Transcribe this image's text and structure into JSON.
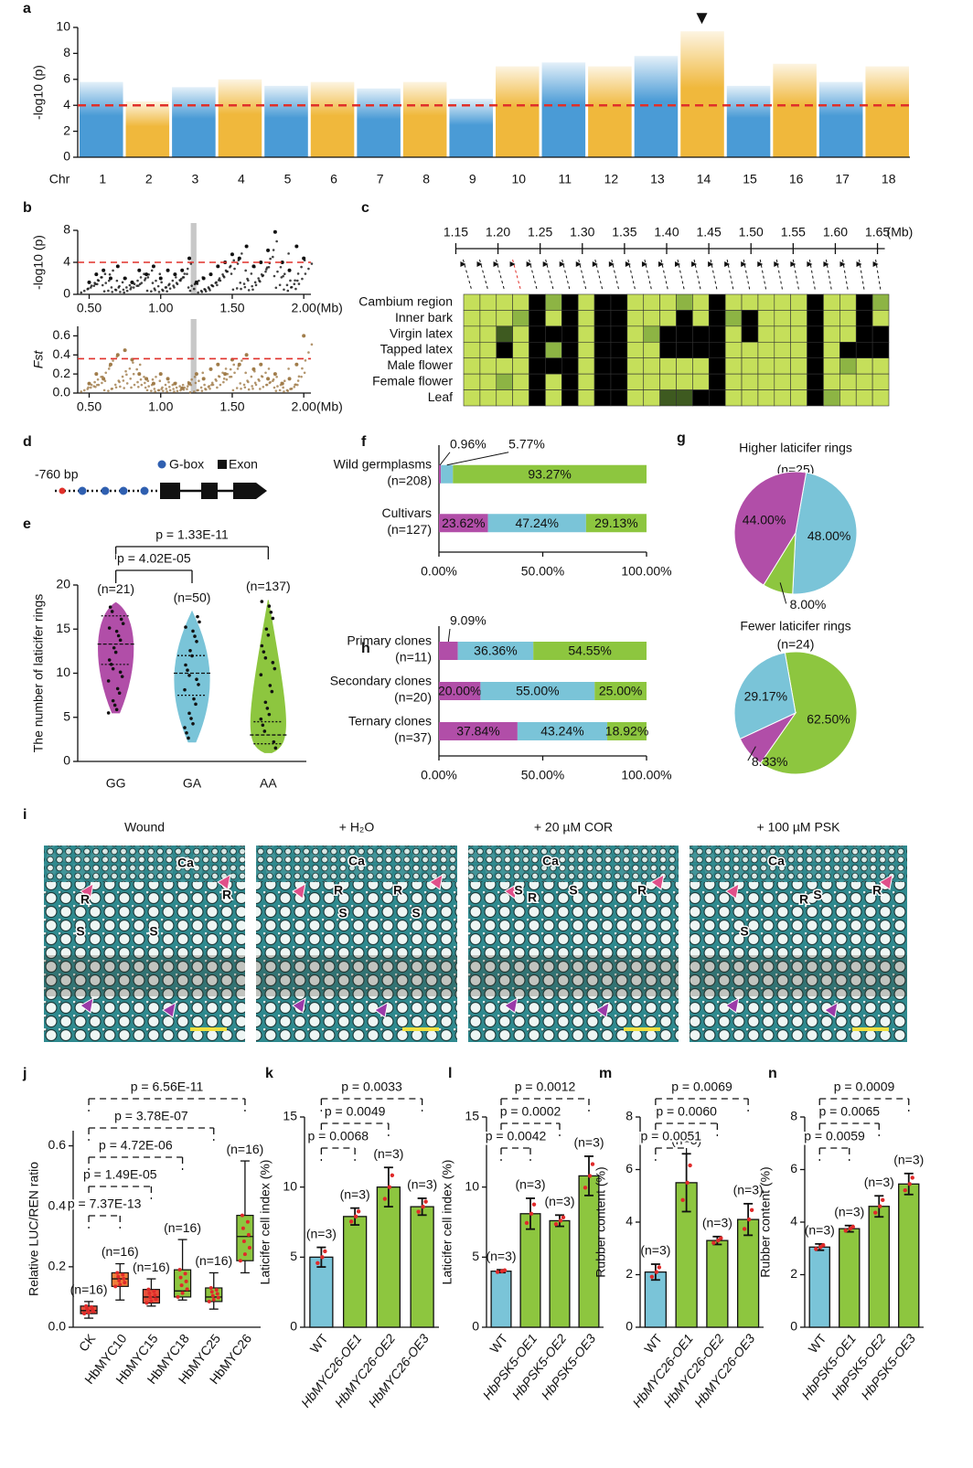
{
  "chart_data": [
    {
      "label": "a",
      "type": "manhattan",
      "ylabel": "-log10 (p)",
      "xlabel": "Chr",
      "categories": [
        "1",
        "2",
        "3",
        "4",
        "5",
        "6",
        "7",
        "8",
        "9",
        "10",
        "11",
        "12",
        "13",
        "14",
        "15",
        "16",
        "17",
        "18"
      ],
      "values": [
        5.8,
        4.3,
        5.4,
        6.0,
        5.5,
        5.8,
        5.3,
        5.8,
        4.5,
        7.0,
        7.3,
        7.0,
        7.8,
        9.7,
        5.5,
        7.2,
        5.8,
        7.0
      ],
      "colors": [
        "#4a9bd6",
        "#f0b83c"
      ],
      "ylim": [
        0,
        10
      ],
      "yticks": [
        0,
        2,
        4,
        6,
        8,
        10
      ],
      "threshold": 4,
      "threshold_color": "#e0302a"
    },
    {
      "label": "b",
      "type": "scatter",
      "ylabel": "-log10 (p)",
      "xlabel": "(Mb)",
      "color": "#111111",
      "x": [
        0.5,
        0.55,
        0.6,
        0.65,
        0.7,
        0.75,
        0.8,
        0.85,
        0.9,
        0.95,
        1.0,
        1.05,
        1.1,
        1.15,
        1.2,
        1.25,
        1.3,
        1.35,
        1.4,
        1.45,
        1.5,
        1.55,
        1.6,
        1.65,
        1.7,
        1.75,
        1.8,
        1.85,
        1.9,
        1.95,
        2.0
      ],
      "values": [
        1.5,
        2.5,
        3,
        2,
        3.5,
        2,
        1.5,
        3,
        2.5,
        3.5,
        2,
        3,
        2.5,
        3,
        4.5,
        1.5,
        2,
        2.5,
        3.5,
        4,
        5,
        4.5,
        6,
        3.5,
        4,
        5.5,
        7.8,
        4,
        3,
        6,
        4.5
      ],
      "xlim": [
        0.42,
        2.05
      ],
      "xticks": [
        {
          "value": 0.5,
          "label": "0.50"
        },
        {
          "value": 1,
          "label": "1.00"
        },
        {
          "value": 1.5,
          "label": "1.50"
        },
        {
          "value": 2,
          "label": "2.00"
        }
      ],
      "ylim": [
        0,
        8
      ],
      "yticks": [
        0,
        4,
        8
      ],
      "threshold": 4,
      "threshold_color": "#e0302a",
      "highlight": [
        1.21,
        1.25
      ]
    },
    {
      "type": "scatter",
      "ylabel": "Fst",
      "xlabel": "(Mb)",
      "color": "#a07c4a",
      "x": [
        0.5,
        0.55,
        0.6,
        0.65,
        0.7,
        0.75,
        0.8,
        0.85,
        0.9,
        0.95,
        1.0,
        1.05,
        1.1,
        1.15,
        1.2,
        1.25,
        1.3,
        1.35,
        1.4,
        1.45,
        1.5,
        1.55,
        1.6,
        1.65,
        1.7,
        1.75,
        1.8,
        1.85,
        1.9,
        1.95,
        2.0
      ],
      "values": [
        0.1,
        0.2,
        0.15,
        0.3,
        0.4,
        0.45,
        0.35,
        0.2,
        0.15,
        0.1,
        0.2,
        0.15,
        0.1,
        0.05,
        0.1,
        0.2,
        0.15,
        0.25,
        0.3,
        0.2,
        0.35,
        0.3,
        0.4,
        0.25,
        0.3,
        0.15,
        0.2,
        0.1,
        0.15,
        0.3,
        0.6
      ],
      "xlim": [
        0.42,
        2.05
      ],
      "xticks": [
        {
          "value": 0.5,
          "label": "0.50"
        },
        {
          "value": 1,
          "label": "1.00"
        },
        {
          "value": 1.5,
          "label": "1.50"
        },
        {
          "value": 2,
          "label": "2.00"
        }
      ],
      "ylim": [
        0,
        0.7
      ],
      "yticks": [
        {
          "value": 0,
          "label": "0.0"
        },
        0.2,
        0.4,
        0.6
      ],
      "threshold": 0.36,
      "threshold_color": "#e0302a",
      "highlight": [
        1.21,
        1.25
      ]
    },
    {
      "label": "c",
      "type": "heatmap",
      "xlabel": "(Mb)",
      "xlim": [
        1.13,
        1.67
      ],
      "xticks": [
        1.15,
        {
          "value": 1.2,
          "label": "1.20"
        },
        1.25,
        {
          "value": 1.3,
          "label": "1.30"
        },
        1.35,
        {
          "value": 1.4,
          "label": "1.40"
        },
        1.45,
        {
          "value": 1.5,
          "label": "1.50"
        },
        1.55,
        {
          "value": 1.6,
          "label": "1.60"
        },
        1.65
      ],
      "rows": [
        "Cambium region",
        "Inner bark",
        "Virgin latex",
        "Tapped latex",
        "Male flower",
        "Female flower",
        "Leaf"
      ],
      "colors": [
        "#c5df5a",
        "#8db444",
        "#3e5a20",
        "#000000"
      ],
      "matrix": [
        [
          0,
          0,
          0,
          0,
          3,
          1,
          3,
          0,
          3,
          3,
          0,
          0,
          0,
          1,
          0,
          3,
          0,
          0,
          0,
          0,
          0,
          3,
          0,
          0,
          3,
          1
        ],
        [
          0,
          0,
          0,
          1,
          3,
          0,
          3,
          0,
          3,
          3,
          0,
          0,
          0,
          3,
          0,
          3,
          1,
          3,
          0,
          0,
          0,
          3,
          0,
          0,
          3,
          0
        ],
        [
          0,
          0,
          2,
          0,
          3,
          3,
          3,
          0,
          3,
          3,
          0,
          1,
          3,
          3,
          3,
          3,
          0,
          3,
          0,
          0,
          0,
          3,
          0,
          0,
          3,
          3
        ],
        [
          0,
          0,
          3,
          0,
          3,
          1,
          3,
          0,
          3,
          3,
          0,
          0,
          3,
          3,
          3,
          3,
          0,
          0,
          0,
          0,
          0,
          3,
          0,
          3,
          3,
          3
        ],
        [
          0,
          0,
          0,
          0,
          3,
          3,
          3,
          0,
          3,
          3,
          0,
          0,
          0,
          0,
          0,
          3,
          0,
          0,
          0,
          0,
          0,
          3,
          0,
          1,
          0,
          0
        ],
        [
          0,
          0,
          1,
          0,
          3,
          0,
          3,
          0,
          3,
          3,
          0,
          0,
          0,
          0,
          0,
          3,
          0,
          0,
          0,
          0,
          0,
          3,
          0,
          0,
          0,
          0
        ],
        [
          0,
          0,
          0,
          0,
          3,
          0,
          3,
          0,
          3,
          3,
          0,
          0,
          2,
          2,
          3,
          3,
          0,
          0,
          0,
          0,
          0,
          3,
          1,
          0,
          0,
          0
        ]
      ]
    },
    {
      "label": "e",
      "type": "violin",
      "ylabel": "The number of laticifer rings",
      "categories": [
        "GG",
        "GA",
        "AA"
      ],
      "n_labels": [
        "(n=21)",
        "(n=50)",
        "(n=137)"
      ],
      "values": [
        13.3,
        10,
        3
      ],
      "q1": [
        11,
        7.5,
        2
      ],
      "q3": [
        16.5,
        12,
        4.5
      ],
      "min": [
        5.5,
        2.2,
        1
      ],
      "max": [
        18,
        17,
        18.3
      ],
      "colors": [
        "#b14ea8",
        "#7ac4d8",
        "#8dc63f"
      ],
      "ylim": [
        0,
        20
      ],
      "yticks": [
        0,
        5,
        10,
        15,
        20
      ],
      "comparisons": [
        {
          "between": [
            "GG",
            "AA"
          ],
          "label": "p = 1.33E-11"
        },
        {
          "between": [
            "GG",
            "GA"
          ],
          "label": "p = 4.02E-05"
        }
      ]
    },
    {
      "label": "f",
      "type": "stacked_hbar",
      "categories": [
        "Wild germplasms",
        "Cultivars"
      ],
      "n_labels": [
        "(n=208)",
        "(n=127)"
      ],
      "series": [
        {
          "color": "#b14ea8",
          "values": [
            0.96,
            23.62
          ],
          "value_labels": [
            "0.96%",
            "23.62%"
          ]
        },
        {
          "color": "#7ac4d8",
          "values": [
            5.77,
            47.24
          ],
          "value_labels": [
            "5.77%",
            "47.24%"
          ]
        },
        {
          "color": "#8dc63f",
          "values": [
            93.27,
            29.13
          ],
          "value_labels": [
            "93.27%",
            "29.13%"
          ]
        }
      ],
      "xlim": [
        0,
        100
      ],
      "xticks": [
        {
          "value": 0,
          "label": "0.00%"
        },
        {
          "value": 50,
          "label": "50.00%"
        },
        {
          "value": 100,
          "label": "100.00%"
        }
      ]
    },
    {
      "label": "h",
      "type": "stacked_hbar",
      "categories": [
        "Primary clones",
        "Secondary clones",
        "Ternary clones"
      ],
      "n_labels": [
        "(n=11)",
        "(n=20)",
        "(n=37)"
      ],
      "series": [
        {
          "color": "#b14ea8",
          "values": [
            9.09,
            20,
            37.84
          ],
          "value_labels": [
            "9.09%",
            "20.00%",
            "37.84%"
          ]
        },
        {
          "color": "#7ac4d8",
          "values": [
            36.36,
            55,
            43.24
          ],
          "value_labels": [
            "36.36%",
            "55.00%",
            "43.24%"
          ]
        },
        {
          "color": "#8dc63f",
          "values": [
            54.55,
            25,
            18.92
          ],
          "value_labels": [
            "54.55%",
            "25.00%",
            "18.92%"
          ]
        }
      ],
      "xlim": [
        0,
        100
      ],
      "xticks": [
        {
          "value": 0,
          "label": "0.00%"
        },
        {
          "value": 50,
          "label": "50.00%"
        },
        {
          "value": 100,
          "label": "100.00%"
        }
      ]
    },
    {
      "label": "g",
      "type": "pie",
      "title": "Higher laticifer rings",
      "subtitle": "(n=25)",
      "values": [
        48,
        8,
        44
      ],
      "value_labels": [
        "48.00%",
        "8.00%",
        "44.00%"
      ],
      "colors": [
        "#7ac4d8",
        "#8dc63f",
        "#b14ea8"
      ]
    },
    {
      "type": "pie",
      "title": "Fewer laticifer rings",
      "subtitle": "(n=24)",
      "values": [
        62.5,
        8.33,
        29.17
      ],
      "value_labels": [
        "62.50%",
        "8.33%",
        "29.17%"
      ],
      "colors": [
        "#8dc63f",
        "#b14ea8",
        "#7ac4d8"
      ]
    },
    {
      "label": "j",
      "type": "box",
      "ylabel": "Relative LUC/REN ratio",
      "categories": [
        "CK",
        "HbMYC10",
        "HbMYC15",
        "HbMYC18",
        "HbMYC25",
        "HbMYC26"
      ],
      "n_labels": [
        "(n=16)",
        "(n=16)",
        "(n=16)",
        "(n=16)",
        "(n=16)",
        "(n=16)"
      ],
      "values": [
        0.055,
        0.16,
        0.1,
        0.12,
        0.1,
        0.3
      ],
      "q1": [
        0.045,
        0.135,
        0.08,
        0.1,
        0.085,
        0.22
      ],
      "q3": [
        0.07,
        0.18,
        0.125,
        0.19,
        0.13,
        0.37
      ],
      "min": [
        0.03,
        0.09,
        0.07,
        0.09,
        0.06,
        0.18
      ],
      "max": [
        0.085,
        0.21,
        0.16,
        0.29,
        0.18,
        0.55
      ],
      "colors": [
        "#e8503a",
        "#ef7f3a",
        "#e8503a",
        "#8dc63f",
        "#8dc63f",
        "#8dc63f"
      ],
      "ylim": [
        0,
        0.65
      ],
      "yticks": [
        {
          "value": 0,
          "label": "0.0"
        },
        0.2,
        0.4,
        0.6
      ],
      "comparisons": [
        {
          "between": [
            "CK",
            "HbMYC26"
          ],
          "label": "p = 6.56E-11"
        },
        {
          "between": [
            "CK",
            "HbMYC25"
          ],
          "label": "p = 3.78E-07"
        },
        {
          "between": [
            "CK",
            "HbMYC18"
          ],
          "label": "p = 4.72E-06"
        },
        {
          "between": [
            "CK",
            "HbMYC15"
          ],
          "label": "p = 1.49E-05"
        },
        {
          "between": [
            "CK",
            "HbMYC10"
          ],
          "label": "p = 7.37E-13"
        }
      ]
    },
    {
      "label": "k",
      "type": "bar_error",
      "italic": true,
      "ylabel": "Laticifer cell index (%)",
      "categories": [
        "WT",
        "HbMYC26-OE1",
        "HbMYC26-OE2",
        "HbMYC26-OE3"
      ],
      "n_labels": [
        "(n=3)",
        "(n=3)",
        "(n=3)",
        "(n=3)"
      ],
      "values": [
        5,
        7.9,
        10,
        8.6
      ],
      "errors": [
        0.7,
        0.6,
        1.4,
        0.6
      ],
      "colors": [
        "#7ac4d8",
        "#8dc63f",
        "#8dc63f",
        "#8dc63f"
      ],
      "ylim": [
        0,
        15
      ],
      "yticks": [
        0,
        5,
        10,
        15
      ],
      "comparisons": [
        {
          "between": [
            "WT",
            "HbMYC26-OE3"
          ],
          "label": "p = 0.0033"
        },
        {
          "between": [
            "WT",
            "HbMYC26-OE2"
          ],
          "label": "p = 0.0049"
        },
        {
          "between": [
            "WT",
            "HbMYC26-OE1"
          ],
          "label": "p = 0.0068"
        }
      ]
    },
    {
      "label": "l",
      "type": "bar_error",
      "italic": true,
      "ylabel": "Laticifer cell  index (%)",
      "categories": [
        "WT",
        "HbPSK5-OE1",
        "HbPSK5-OE2",
        "HbPSK5-OE3"
      ],
      "n_labels": [
        "(n=3)",
        "(n=3)",
        "(n=3)",
        "(n=3)"
      ],
      "values": [
        4,
        8.1,
        7.6,
        10.8
      ],
      "errors": [
        0.1,
        1.1,
        0.4,
        1.4
      ],
      "colors": [
        "#7ac4d8",
        "#8dc63f",
        "#8dc63f",
        "#8dc63f"
      ],
      "ylim": [
        0,
        15
      ],
      "yticks": [
        0,
        5,
        10,
        15
      ],
      "comparisons": [
        {
          "between": [
            "WT",
            "HbPSK5-OE3"
          ],
          "label": "p = 0.0012"
        },
        {
          "between": [
            "WT",
            "HbPSK5-OE2"
          ],
          "label": "p = 0.0002"
        },
        {
          "between": [
            "WT",
            "HbPSK5-OE1"
          ],
          "label": "p = 0.0042"
        }
      ]
    },
    {
      "label": "m",
      "type": "bar_error",
      "italic": true,
      "ylabel": "Rubber content (%)",
      "categories": [
        "WT",
        "HbMYC26-OE1",
        "HbMYC26-OE2",
        "HbMYC26-OE3"
      ],
      "n_labels": [
        "(n=3)",
        "(n=3)",
        "(n=3)",
        "(n=3)"
      ],
      "values": [
        2.1,
        5.5,
        3.3,
        4.1
      ],
      "errors": [
        0.3,
        1.1,
        0.15,
        0.6
      ],
      "colors": [
        "#7ac4d8",
        "#8dc63f",
        "#8dc63f",
        "#8dc63f"
      ],
      "ylim": [
        0,
        8
      ],
      "yticks": [
        0,
        2,
        4,
        6,
        8
      ],
      "comparisons": [
        {
          "between": [
            "WT",
            "HbMYC26-OE3"
          ],
          "label": "p = 0.0069"
        },
        {
          "between": [
            "WT",
            "HbMYC26-OE2"
          ],
          "label": "p = 0.0060"
        },
        {
          "between": [
            "WT",
            "HbMYC26-OE1"
          ],
          "label": "p = 0.0051"
        }
      ]
    },
    {
      "label": "n",
      "type": "bar_error",
      "italic": true,
      "ylabel": "Rubber content (%)",
      "categories": [
        "WT",
        "HbPSK5-OE1",
        "HbPSK5-OE2",
        "HbPSK5-OE3"
      ],
      "n_labels": [
        "(n=3)",
        "(n=3)",
        "(n=3)",
        "(n=3)"
      ],
      "values": [
        3.05,
        3.75,
        4.6,
        5.45
      ],
      "errors": [
        0.12,
        0.12,
        0.4,
        0.4
      ],
      "colors": [
        "#7ac4d8",
        "#8dc63f",
        "#8dc63f",
        "#8dc63f"
      ],
      "ylim": [
        0,
        8
      ],
      "yticks": [
        0,
        2,
        4,
        6,
        8
      ],
      "comparisons": [
        {
          "between": [
            "WT",
            "HbPSK5-OE3"
          ],
          "label": "p = 0.0009"
        },
        {
          "between": [
            "WT",
            "HbPSK5-OE2"
          ],
          "label": "p = 0.0065"
        },
        {
          "between": [
            "WT",
            "HbPSK5-OE1"
          ],
          "label": "p = 0.0059"
        }
      ]
    }
  ],
  "gene_diagram": {
    "label": "d",
    "promoter": "-760 bp",
    "legend": [
      "G-box",
      "Exon"
    ]
  },
  "micrographs": {
    "label": "i",
    "panels": [
      {
        "title": "Wound",
        "labels": [
          "Ca",
          "R",
          "R",
          "S",
          "S"
        ]
      },
      {
        "title": "+ H₂O",
        "labels": [
          "Ca",
          "R",
          "R",
          "S",
          "S"
        ]
      },
      {
        "title": "+ 20 µM COR",
        "labels": [
          "Ca",
          "S",
          "R",
          "S",
          "R"
        ]
      },
      {
        "title": "+ 100 µM PSK",
        "labels": [
          "Ca",
          "R",
          "S",
          "R",
          "S"
        ]
      }
    ]
  }
}
